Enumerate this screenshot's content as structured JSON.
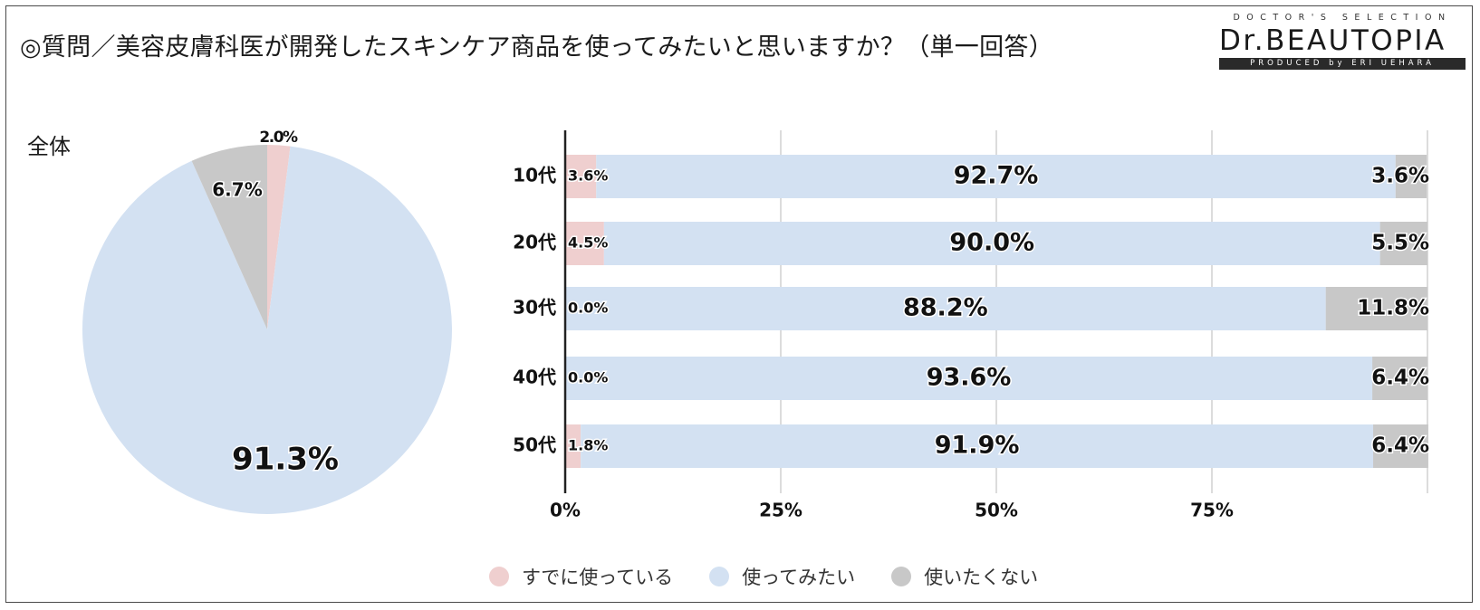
{
  "title": "◎質問／美容皮膚科医が開発したスキンケア商品を使ってみたいと思いますか？（単一回答）",
  "logo": {
    "top": "DOCTOR'S SELECTION",
    "main": "Dr.BEAUTOPIA",
    "sub": "PRODUCED by ERI UEHARA"
  },
  "colors": {
    "already": "#efcfcf",
    "want": "#d3e1f2",
    "not": "#c8c8c8",
    "axis": "#222222",
    "grid": "#d0d0d0"
  },
  "chart_data": [
    {
      "type": "pie",
      "title": "全体",
      "labels": [
        "すでに使っている",
        "使ってみたい",
        "使いたくない"
      ],
      "values": [
        2.0,
        91.3,
        6.7
      ],
      "value_labels": [
        "2.0%",
        "91.3%",
        "6.7%"
      ]
    },
    {
      "type": "bar",
      "orientation": "horizontal",
      "stacked": true,
      "categories": [
        "10代",
        "20代",
        "30代",
        "40代",
        "50代"
      ],
      "series": [
        {
          "name": "すでに使っている",
          "values": [
            3.6,
            4.5,
            0.0,
            0.0,
            1.8
          ],
          "labels": [
            "3.6%",
            "4.5%",
            "0.0%",
            "0.0%",
            "1.8%"
          ]
        },
        {
          "name": "使ってみたい",
          "values": [
            92.7,
            90.0,
            88.2,
            93.6,
            91.9
          ],
          "labels": [
            "92.7%",
            "90.0%",
            "88.2%",
            "93.6%",
            "91.9%"
          ]
        },
        {
          "name": "使いたくない",
          "values": [
            3.6,
            5.5,
            11.8,
            6.4,
            6.4
          ],
          "labels": [
            "3.6%",
            "5.5%",
            "11.8%",
            "6.4%",
            "6.4%"
          ]
        }
      ],
      "xlim": [
        0,
        100
      ],
      "ticks": [
        0,
        25,
        50,
        75,
        100
      ],
      "tick_labels": [
        "0%",
        "25%",
        "50%",
        "75%",
        ""
      ],
      "grid": true,
      "legend": "bottom"
    }
  ],
  "legend": [
    {
      "label": "すでに使っている",
      "color": "#efcfcf"
    },
    {
      "label": "使ってみたい",
      "color": "#d3e1f2"
    },
    {
      "label": "使いたくない",
      "color": "#c8c8c8"
    }
  ]
}
